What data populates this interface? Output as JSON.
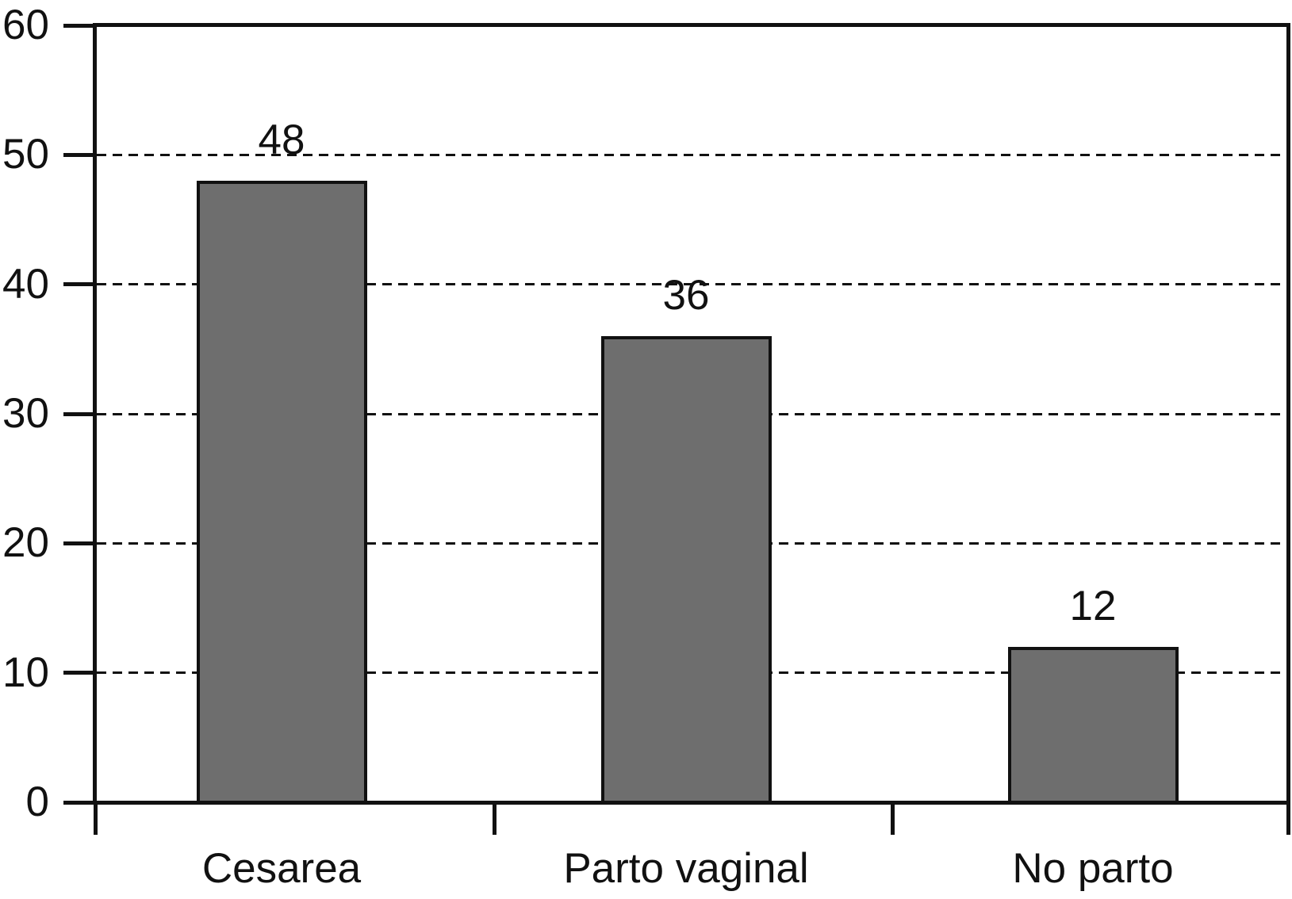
{
  "chart_data": {
    "type": "bar",
    "title": "",
    "xlabel": "",
    "ylabel": "",
    "categories": [
      "Cesarea",
      "Parto vaginal",
      "No parto"
    ],
    "values": [
      48,
      36,
      12
    ],
    "value_labels": [
      "48",
      "36",
      "12"
    ],
    "ylim": [
      0,
      60
    ],
    "ytick_interval": 10,
    "ytick_labels": [
      "0",
      "10",
      "20",
      "30",
      "40",
      "50",
      "60"
    ],
    "grid": "horizontal dashed lines at 10,20,30,40,50; solid frame at 0 and 60",
    "legend": "none",
    "colors": {
      "bar_fill": "#6e6e6e",
      "bar_border": "#111111",
      "axis": "#111111",
      "text": "#111111",
      "background": "#ffffff"
    }
  }
}
